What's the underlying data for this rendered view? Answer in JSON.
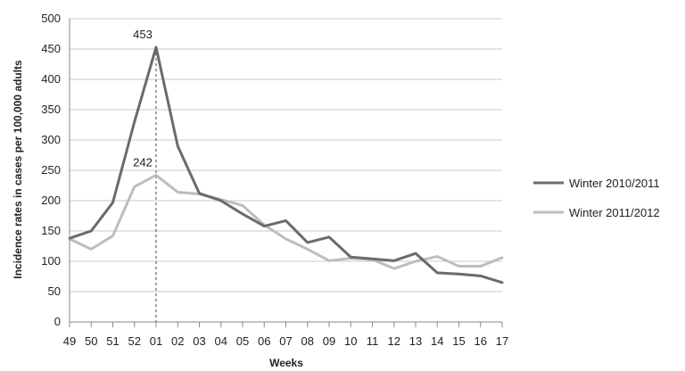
{
  "chart_data": {
    "type": "line",
    "title": "",
    "xlabel": "Weeks",
    "ylabel": "Incidence rates in cases per 100,000 adults",
    "categories": [
      "49",
      "50",
      "51",
      "52",
      "01",
      "02",
      "03",
      "04",
      "05",
      "06",
      "07",
      "08",
      "09",
      "10",
      "11",
      "12",
      "13",
      "14",
      "15",
      "16",
      "17"
    ],
    "ylim": [
      0,
      500
    ],
    "yticks": [
      0,
      50,
      100,
      150,
      200,
      250,
      300,
      350,
      400,
      450,
      500
    ],
    "grid": true,
    "legend": "right",
    "series": [
      {
        "name": "Winter 2010/2011",
        "color": "#6b6b6b",
        "values": [
          138,
          150,
          197,
          330,
          453,
          290,
          212,
          200,
          178,
          158,
          167,
          131,
          140,
          107,
          104,
          101,
          113,
          81,
          79,
          76,
          65
        ]
      },
      {
        "name": "Winter 2011/2012",
        "color": "#bdbdbd",
        "values": [
          137,
          120,
          142,
          223,
          242,
          214,
          211,
          202,
          192,
          160,
          137,
          120,
          101,
          105,
          103,
          88,
          100,
          108,
          92,
          92,
          106
        ]
      }
    ],
    "annotations": [
      {
        "text": "453",
        "category": "01",
        "series": 0
      },
      {
        "text": "242",
        "category": "01",
        "series": 1
      }
    ],
    "reference_line": {
      "category": "01",
      "style": "dashed",
      "color": "#444444"
    }
  }
}
